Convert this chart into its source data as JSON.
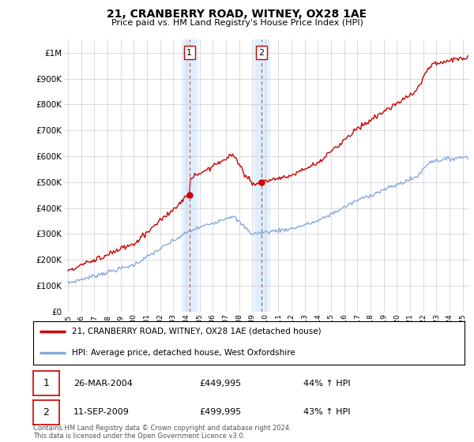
{
  "title": "21, CRANBERRY ROAD, WITNEY, OX28 1AE",
  "subtitle": "Price paid vs. HM Land Registry's House Price Index (HPI)",
  "ylim": [
    0,
    1050000
  ],
  "xlim": [
    1994.7,
    2025.5
  ],
  "yticks": [
    0,
    100000,
    200000,
    300000,
    400000,
    500000,
    600000,
    700000,
    800000,
    900000,
    1000000
  ],
  "ytick_labels": [
    "£0",
    "£100K",
    "£200K",
    "£300K",
    "£400K",
    "£500K",
    "£600K",
    "£700K",
    "£800K",
    "£900K",
    "£1M"
  ],
  "xticks": [
    1995,
    1996,
    1997,
    1998,
    1999,
    2000,
    2001,
    2002,
    2003,
    2004,
    2005,
    2006,
    2007,
    2008,
    2009,
    2010,
    2011,
    2012,
    2013,
    2014,
    2015,
    2016,
    2017,
    2018,
    2019,
    2020,
    2021,
    2022,
    2023,
    2024,
    2025
  ],
  "red_line_color": "#cc0000",
  "blue_line_color": "#88aadd",
  "shaded_color": "#ddeeff",
  "dashed_color": "#dd4444",
  "grid_color": "#cccccc",
  "sale1_x": 2004.23,
  "sale1_y": 449995,
  "sale2_x": 2009.7,
  "sale2_y": 499995,
  "sale1_label": "1",
  "sale2_label": "2",
  "sale1_date": "26-MAR-2004",
  "sale1_price": "£449,995",
  "sale1_hpi": "44% ↑ HPI",
  "sale2_date": "11-SEP-2009",
  "sale2_price": "£499,995",
  "sale2_hpi": "43% ↑ HPI",
  "legend_line1": "21, CRANBERRY ROAD, WITNEY, OX28 1AE (detached house)",
  "legend_line2": "HPI: Average price, detached house, West Oxfordshire",
  "footnote": "Contains HM Land Registry data © Crown copyright and database right 2024.\nThis data is licensed under the Open Government Licence v3.0."
}
